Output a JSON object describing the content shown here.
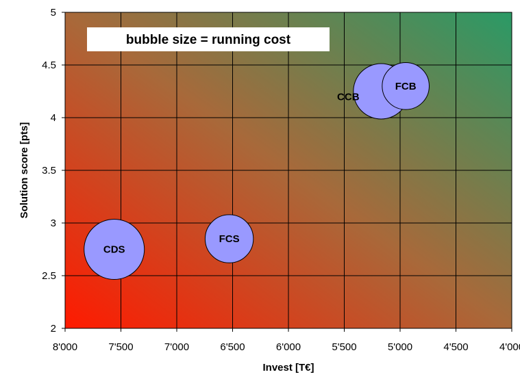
{
  "chart_data": {
    "type": "bubble",
    "note": "bubble size = running cost",
    "xlabel": "Invest [T€]",
    "ylabel": "Solution score [pts]",
    "xlim": [
      8000,
      4000
    ],
    "x_reversed": true,
    "ylim": [
      2,
      5
    ],
    "x_ticks": [
      8000,
      7500,
      7000,
      6500,
      6000,
      5500,
      5000,
      4500,
      4000
    ],
    "x_tick_labels": [
      "8'000",
      "7'500",
      "7'000",
      "6'500",
      "6'000",
      "5'500",
      "5'000",
      "4'500",
      "4'000"
    ],
    "y_ticks": [
      2,
      2.5,
      3,
      3.5,
      4,
      4.5,
      5
    ],
    "y_tick_labels": [
      "2",
      "2.5",
      "3",
      "3.5",
      "4",
      "4.5",
      "5"
    ],
    "grid": true,
    "background": "gradient red (bottom-left) to green (top-right)",
    "colors": {
      "bubble_fill": "#9999ff",
      "bubble_stroke": "#000000",
      "bg_low": "#ff1a00",
      "bg_mid": "#a8693a",
      "bg_high": "#2a9a66"
    },
    "points": [
      {
        "label": "CDS",
        "x": 7560,
        "y": 2.75,
        "size": 1.0
      },
      {
        "label": "FCS",
        "x": 6530,
        "y": 2.85,
        "size": 0.8
      },
      {
        "label": "CCB",
        "x": 5170,
        "y": 4.25,
        "size": 0.92
      },
      {
        "label": "FCB",
        "x": 4950,
        "y": 4.3,
        "size": 0.78
      }
    ]
  }
}
